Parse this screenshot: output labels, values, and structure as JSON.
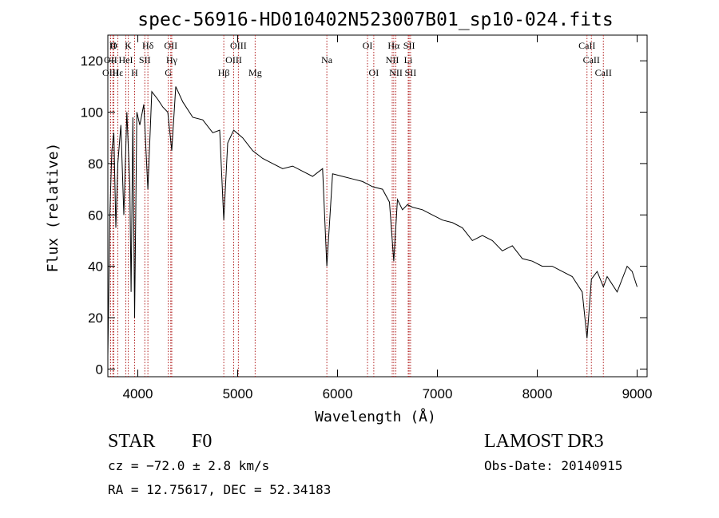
{
  "chart_data": {
    "type": "line",
    "title": "spec-56916-HD010402N523007B01_sp10-024.fits",
    "xlabel": "Wavelength (Å)",
    "ylabel": "Flux (relative)",
    "xlim": [
      3700,
      9100
    ],
    "ylim": [
      -3,
      130
    ],
    "x_ticks": [
      4000,
      5000,
      6000,
      7000,
      8000,
      9000
    ],
    "y_ticks": [
      0,
      20,
      40,
      60,
      80,
      100,
      120
    ],
    "grid": false,
    "series": [
      {
        "x": [
          3700,
          3720,
          3740,
          3760,
          3780,
          3800,
          3830,
          3860,
          3890,
          3920,
          3933,
          3950,
          3968,
          3990,
          4020,
          4060,
          4101,
          4140,
          4200,
          4250,
          4300,
          4340,
          4380,
          4450,
          4550,
          4650,
          4750,
          4820,
          4861,
          4900,
          4960,
          5050,
          5150,
          5250,
          5350,
          5450,
          5550,
          5650,
          5750,
          5850,
          5893,
          5950,
          6050,
          6150,
          6250,
          6350,
          6450,
          6520,
          6563,
          6600,
          6650,
          6700,
          6750,
          6850,
          6950,
          7050,
          7150,
          7250,
          7350,
          7450,
          7550,
          7650,
          7750,
          7850,
          7950,
          8050,
          8150,
          8250,
          8350,
          8450,
          8498,
          8542,
          8600,
          8662,
          8700,
          8800,
          8900,
          8950,
          9000
        ],
        "y": [
          5,
          60,
          85,
          92,
          55,
          80,
          95,
          60,
          100,
          72,
          30,
          98,
          20,
          100,
          95,
          103,
          70,
          108,
          105,
          102,
          100,
          85,
          110,
          104,
          98,
          97,
          92,
          93,
          58,
          88,
          93,
          90,
          85,
          82,
          80,
          78,
          79,
          77,
          75,
          78,
          40,
          76,
          75,
          74,
          73,
          71,
          70,
          65,
          42,
          66,
          62,
          64,
          63,
          62,
          60,
          58,
          57,
          55,
          50,
          52,
          50,
          46,
          48,
          43,
          42,
          40,
          40,
          38,
          36,
          30,
          12,
          35,
          38,
          32,
          36,
          30,
          40,
          38,
          32
        ]
      }
    ],
    "lines": [
      {
        "label": "H",
        "x": 3750,
        "row": 0
      },
      {
        "label": "O",
        "x": 3760,
        "row": 0
      },
      {
        "label": "K",
        "x": 3905,
        "row": 0
      },
      {
        "label": "Hδ",
        "x": 4101,
        "row": 0
      },
      {
        "label": "OII",
        "x": 4330,
        "row": 0
      },
      {
        "label": "OIII",
        "x": 5007,
        "row": 0
      },
      {
        "label": "OI",
        "x": 6300,
        "row": 0
      },
      {
        "label": "Hα",
        "x": 6563,
        "row": 0
      },
      {
        "label": "SII",
        "x": 6717,
        "row": 0
      },
      {
        "label": "CaII",
        "x": 8498,
        "row": 0
      },
      {
        "label": "OII",
        "x": 3727,
        "row": 1
      },
      {
        "label": "HeI",
        "x": 3880,
        "row": 1
      },
      {
        "label": "SII",
        "x": 4070,
        "row": 1
      },
      {
        "label": "Hγ",
        "x": 4340,
        "row": 1
      },
      {
        "label": "OIII",
        "x": 4960,
        "row": 1
      },
      {
        "label": "Na",
        "x": 5893,
        "row": 1
      },
      {
        "label": "NII",
        "x": 6548,
        "row": 1
      },
      {
        "label": "Li",
        "x": 6708,
        "row": 1
      },
      {
        "label": "CaII",
        "x": 8542,
        "row": 1
      },
      {
        "label": "OIII",
        "x": 3727,
        "row": 2
      },
      {
        "label": "Hε",
        "x": 3800,
        "row": 2
      },
      {
        "label": "H",
        "x": 3968,
        "row": 2
      },
      {
        "label": "G",
        "x": 4305,
        "row": 2
      },
      {
        "label": "Hβ",
        "x": 4861,
        "row": 2
      },
      {
        "label": "Mg",
        "x": 5175,
        "row": 2
      },
      {
        "label": "OI",
        "x": 6363,
        "row": 2
      },
      {
        "label": "NII",
        "x": 6584,
        "row": 2
      },
      {
        "label": "SII",
        "x": 6731,
        "row": 2
      },
      {
        "label": "CaII",
        "x": 8662,
        "row": 2
      }
    ],
    "line_color": "#b22222",
    "trace_color": "#000000"
  },
  "footer": {
    "object_class": "STAR",
    "subclass": "F0",
    "survey": "LAMOST DR3",
    "cz": "cz = −72.0 ± 2.8 km/s",
    "obs_date": "Obs-Date: 20140915",
    "coords": "RA =  12.75617, DEC =  52.34183"
  }
}
